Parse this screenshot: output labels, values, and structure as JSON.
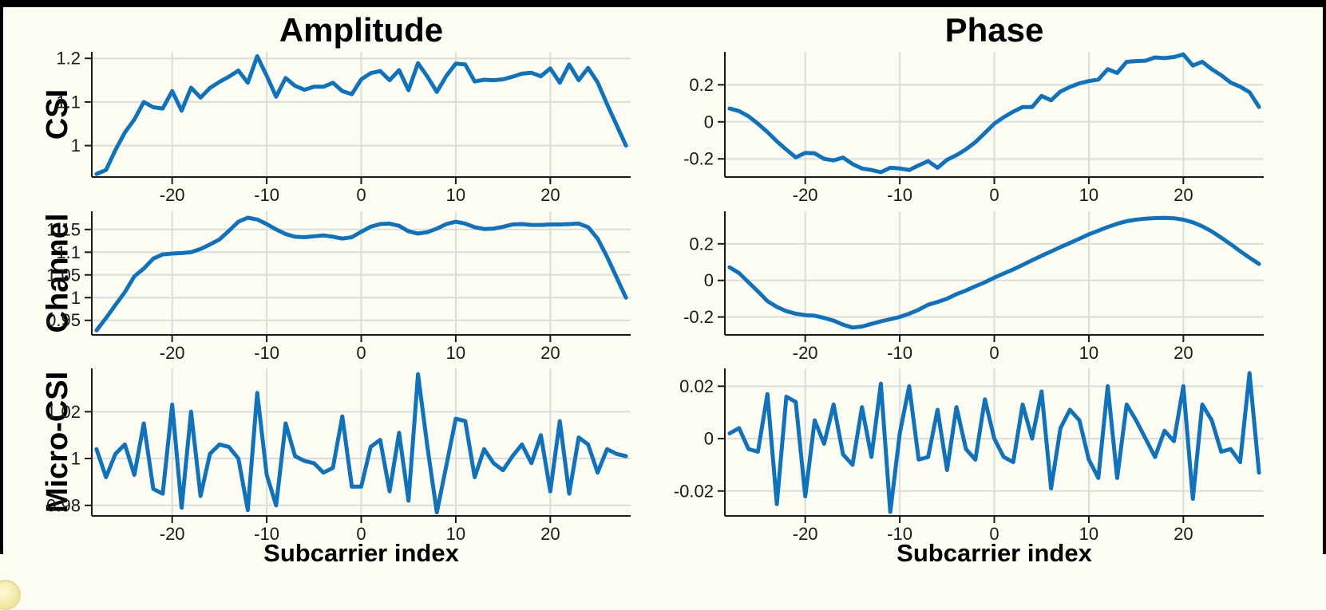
{
  "figure": {
    "column_titles": [
      "Amplitude",
      "Phase"
    ],
    "row_labels": [
      "CSI",
      "Channel",
      "Micro-CSI"
    ],
    "x_axis_label": "Subcarrier index",
    "line_color": "#0e72bc",
    "grid_color": "#dcdcda",
    "axis_color": "#1a1a1a",
    "background_color": "#fcfcf3",
    "frame_color": "#000000",
    "grid": true,
    "legend": null
  },
  "chart_data": [
    {
      "id": "csi-amplitude",
      "type": "line",
      "title": "Amplitude",
      "row_label": "CSI",
      "xlabel": "",
      "x_start": -28,
      "x_step": 1,
      "xlim": [
        -28.5,
        28.5
      ],
      "ylim": [
        0.928,
        1.215
      ],
      "xticks": [
        -20,
        -10,
        0,
        10,
        20
      ],
      "xtick_labels": [
        "-20",
        "-10",
        "0",
        "10",
        "20"
      ],
      "yticks": [
        1,
        1.1,
        1.2
      ],
      "ytick_labels": [
        "1",
        "1.1",
        "1.2"
      ],
      "values": [
        0.935,
        0.944,
        0.99,
        1.03,
        1.06,
        1.1,
        1.088,
        1.085,
        1.125,
        1.08,
        1.133,
        1.11,
        1.132,
        1.146,
        1.158,
        1.172,
        1.144,
        1.205,
        1.16,
        1.112,
        1.155,
        1.137,
        1.128,
        1.135,
        1.135,
        1.144,
        1.125,
        1.118,
        1.152,
        1.166,
        1.171,
        1.15,
        1.173,
        1.127,
        1.189,
        1.158,
        1.123,
        1.16,
        1.188,
        1.186,
        1.147,
        1.151,
        1.15,
        1.152,
        1.158,
        1.165,
        1.167,
        1.159,
        1.177,
        1.144,
        1.186,
        1.15,
        1.178,
        1.145,
        1.095,
        1.048,
        1.0
      ]
    },
    {
      "id": "csi-phase",
      "type": "line",
      "title": "Phase",
      "row_label": "CSI",
      "xlabel": "",
      "x_start": -28,
      "x_step": 1,
      "xlim": [
        -28.5,
        28.5
      ],
      "ylim": [
        -0.298,
        0.378
      ],
      "xticks": [
        -20,
        -10,
        0,
        10,
        20
      ],
      "xtick_labels": [
        "-20",
        "-10",
        "0",
        "10",
        "20"
      ],
      "yticks": [
        -0.2,
        0,
        0.2
      ],
      "ytick_labels": [
        "-0.2",
        "0",
        "0.2"
      ],
      "values": [
        0.072,
        0.058,
        0.03,
        -0.01,
        -0.055,
        -0.105,
        -0.15,
        -0.192,
        -0.168,
        -0.17,
        -0.2,
        -0.208,
        -0.193,
        -0.228,
        -0.252,
        -0.26,
        -0.272,
        -0.248,
        -0.252,
        -0.26,
        -0.235,
        -0.212,
        -0.248,
        -0.205,
        -0.18,
        -0.148,
        -0.11,
        -0.06,
        -0.01,
        0.025,
        0.055,
        0.08,
        0.08,
        0.14,
        0.116,
        0.164,
        0.188,
        0.208,
        0.22,
        0.228,
        0.284,
        0.264,
        0.324,
        0.328,
        0.33,
        0.348,
        0.344,
        0.35,
        0.364,
        0.304,
        0.324,
        0.284,
        0.252,
        0.212,
        0.19,
        0.16,
        0.08
      ]
    },
    {
      "id": "channel-amplitude",
      "type": "line",
      "title": "",
      "row_label": "Channel",
      "xlabel": "",
      "x_start": -28,
      "x_step": 1,
      "xlim": [
        -28.5,
        28.5
      ],
      "ylim": [
        0.918,
        1.19
      ],
      "xticks": [
        -20,
        -10,
        0,
        10,
        20
      ],
      "xtick_labels": [
        "-20",
        "-10",
        "0",
        "10",
        "20"
      ],
      "yticks": [
        0.95,
        1,
        1.05,
        1.1,
        1.15
      ],
      "ytick_labels": [
        "0.95",
        "1",
        "1.05",
        "1.1",
        "1.15"
      ],
      "values": [
        0.928,
        0.955,
        0.984,
        1.012,
        1.047,
        1.064,
        1.086,
        1.095,
        1.097,
        1.098,
        1.1,
        1.107,
        1.117,
        1.128,
        1.147,
        1.167,
        1.176,
        1.172,
        1.162,
        1.15,
        1.14,
        1.134,
        1.133,
        1.135,
        1.137,
        1.134,
        1.13,
        1.133,
        1.145,
        1.156,
        1.162,
        1.163,
        1.158,
        1.146,
        1.141,
        1.144,
        1.152,
        1.162,
        1.167,
        1.163,
        1.155,
        1.151,
        1.152,
        1.156,
        1.161,
        1.162,
        1.16,
        1.16,
        1.161,
        1.161,
        1.162,
        1.163,
        1.155,
        1.13,
        1.09,
        1.045,
        1.0
      ]
    },
    {
      "id": "channel-phase",
      "type": "line",
      "title": "",
      "row_label": "Channel",
      "xlabel": "",
      "x_start": -28,
      "x_step": 1,
      "xlim": [
        -28.5,
        28.5
      ],
      "ylim": [
        -0.298,
        0.378
      ],
      "xticks": [
        -20,
        -10,
        0,
        10,
        20
      ],
      "xtick_labels": [
        "-20",
        "-10",
        "0",
        "10",
        "20"
      ],
      "yticks": [
        -0.2,
        0,
        0.2
      ],
      "ytick_labels": [
        "-0.2",
        "0",
        "0.2"
      ],
      "values": [
        0.072,
        0.04,
        -0.01,
        -0.06,
        -0.113,
        -0.145,
        -0.168,
        -0.182,
        -0.19,
        -0.193,
        -0.205,
        -0.22,
        -0.242,
        -0.258,
        -0.252,
        -0.238,
        -0.224,
        -0.212,
        -0.2,
        -0.182,
        -0.16,
        -0.133,
        -0.118,
        -0.1,
        -0.075,
        -0.055,
        -0.032,
        -0.01,
        0.015,
        0.038,
        0.06,
        0.085,
        0.11,
        0.135,
        0.158,
        0.182,
        0.205,
        0.228,
        0.252,
        0.272,
        0.292,
        0.31,
        0.324,
        0.332,
        0.338,
        0.341,
        0.342,
        0.34,
        0.332,
        0.318,
        0.296,
        0.268,
        0.234,
        0.198,
        0.16,
        0.124,
        0.09
      ]
    },
    {
      "id": "micro-csi-amplitude",
      "type": "line",
      "title": "",
      "row_label": "Micro-CSI",
      "xlabel": "Subcarrier index",
      "x_start": -28,
      "x_step": 1,
      "xlim": [
        -28.5,
        28.5
      ],
      "ylim": [
        0.9755,
        1.0385
      ],
      "xticks": [
        -20,
        -10,
        0,
        10,
        20
      ],
      "xtick_labels": [
        "-20",
        "-10",
        "0",
        "10",
        "20"
      ],
      "yticks": [
        0.98,
        1,
        1.02
      ],
      "ytick_labels": [
        "0.98",
        "1",
        "1.02"
      ],
      "values": [
        1.004,
        0.992,
        1.002,
        1.006,
        0.993,
        1.015,
        0.987,
        0.985,
        1.023,
        0.979,
        1.02,
        0.984,
        1.002,
        1.006,
        1.005,
        1.0,
        0.978,
        1.028,
        0.993,
        0.98,
        1.015,
        1.001,
        0.999,
        0.998,
        0.994,
        0.996,
        1.018,
        0.988,
        0.988,
        1.005,
        1.008,
        0.986,
        1.011,
        0.982,
        1.036,
        1.005,
        0.977,
        0.997,
        1.017,
        1.016,
        0.992,
        1.004,
        0.998,
        0.995,
        1.001,
        1.006,
        0.998,
        1.01,
        0.986,
        1.016,
        0.985,
        1.009,
        1.006,
        0.994,
        1.004,
        1.002,
        1.001
      ]
    },
    {
      "id": "micro-csi-phase",
      "type": "line",
      "title": "",
      "row_label": "Micro-CSI",
      "xlabel": "Subcarrier index",
      "x_start": -28,
      "x_step": 1,
      "xlim": [
        -28.5,
        28.5
      ],
      "ylim": [
        -0.0295,
        0.0268
      ],
      "xticks": [
        -20,
        -10,
        0,
        10,
        20
      ],
      "xtick_labels": [
        "-20",
        "-10",
        "0",
        "10",
        "20"
      ],
      "yticks": [
        -0.02,
        0,
        0.02
      ],
      "ytick_labels": [
        "-0.02",
        "0",
        "0.02"
      ],
      "values": [
        0.002,
        0.004,
        -0.004,
        -0.005,
        0.017,
        -0.025,
        0.016,
        0.014,
        -0.022,
        0.007,
        -0.002,
        0.013,
        -0.006,
        -0.01,
        0.012,
        -0.007,
        0.021,
        -0.028,
        0.002,
        0.02,
        -0.008,
        -0.007,
        0.011,
        -0.012,
        0.012,
        -0.004,
        -0.008,
        0.015,
        0.0,
        -0.007,
        -0.009,
        0.013,
        0.0,
        0.018,
        -0.019,
        0.004,
        0.011,
        0.007,
        -0.008,
        -0.015,
        0.02,
        -0.015,
        0.013,
        0.007,
        0.0,
        -0.007,
        0.003,
        -0.001,
        0.02,
        -0.023,
        0.013,
        0.007,
        -0.005,
        -0.004,
        -0.009,
        0.025,
        -0.013
      ]
    }
  ]
}
